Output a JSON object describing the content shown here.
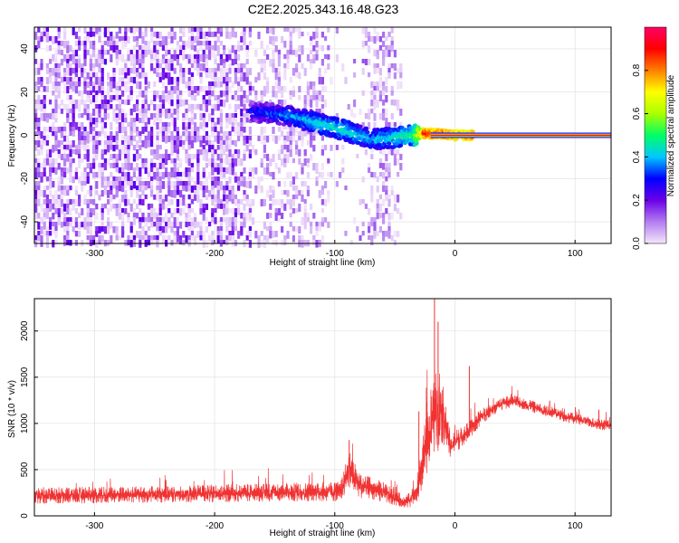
{
  "chart_data": [
    {
      "type": "heatmap",
      "title": "C2E2.2025.343.16.48.G23",
      "xlabel": "Height of straight line (km)",
      "ylabel": "Frequency (Hz)",
      "xlim": [
        -350,
        130
      ],
      "ylim": [
        -50,
        50
      ],
      "xticks": [
        -300,
        -200,
        -100,
        0,
        100
      ],
      "yticks": [
        -40,
        -20,
        0,
        20,
        40
      ],
      "colorbar": {
        "label": "Normalized spectral amplitude",
        "range": [
          0.0,
          1.0
        ],
        "ticks": [
          0.0,
          0.2,
          0.4,
          0.6,
          0.8
        ],
        "colors": [
          "#f4e6fb",
          "#b37df0",
          "#6a00e8",
          "#0000ff",
          "#00c8ff",
          "#00ff64",
          "#aaff00",
          "#ffff00",
          "#ff8000",
          "#ff0000",
          "#ff0066"
        ]
      },
      "features": {
        "noise_region_x": [
          -350,
          -45
        ],
        "sparse_bands_x": [
          [
            -160,
            -110
          ],
          [
            -75,
            -55
          ]
        ],
        "signal_track": [
          {
            "x": -170,
            "freq": 11,
            "amp": 0.3
          },
          {
            "x": -150,
            "freq": 10,
            "amp": 0.35
          },
          {
            "x": -130,
            "freq": 8,
            "amp": 0.4
          },
          {
            "x": -110,
            "freq": 5,
            "amp": 0.45
          },
          {
            "x": -90,
            "freq": 2,
            "amp": 0.45
          },
          {
            "x": -70,
            "freq": -2,
            "amp": 0.4
          },
          {
            "x": -50,
            "freq": -1,
            "amp": 0.45
          },
          {
            "x": -35,
            "freq": 0,
            "amp": 0.5
          },
          {
            "x": -25,
            "freq": 1,
            "amp": 0.9
          },
          {
            "x": -10,
            "freq": 0.5,
            "amp": 0.9
          },
          {
            "x": 0,
            "freq": 0,
            "amp": 0.85
          },
          {
            "x": 130,
            "freq": 0,
            "amp": 0.95
          }
        ]
      }
    },
    {
      "type": "line",
      "xlabel": "Height of straight line (km)",
      "ylabel": "SNR (10 * v/v)",
      "xlim": [
        -350,
        130
      ],
      "ylim": [
        0,
        2350
      ],
      "xticks": [
        -300,
        -200,
        -100,
        0,
        100
      ],
      "yticks": [
        0,
        500,
        1000,
        1500,
        2000
      ],
      "series": [
        {
          "name": "SNR",
          "color": "#f03232",
          "x": [
            -350,
            -320,
            -290,
            -260,
            -230,
            -200,
            -170,
            -140,
            -110,
            -95,
            -88,
            -80,
            -70,
            -60,
            -50,
            -40,
            -32,
            -25,
            -20,
            -15,
            -12,
            -8,
            -4,
            0,
            10,
            20,
            30,
            40,
            50,
            60,
            70,
            80,
            90,
            100,
            110,
            120,
            130
          ],
          "values": [
            220,
            225,
            225,
            230,
            235,
            240,
            250,
            255,
            260,
            265,
            520,
            330,
            300,
            260,
            190,
            150,
            250,
            700,
            950,
            1150,
            1200,
            1000,
            750,
            800,
            900,
            1050,
            1150,
            1220,
            1240,
            1200,
            1160,
            1120,
            1080,
            1050,
            1020,
            990,
            980
          ],
          "spread": [
            130,
            130,
            130,
            130,
            130,
            140,
            140,
            150,
            150,
            160,
            300,
            200,
            170,
            160,
            120,
            100,
            200,
            450,
            500,
            700,
            600,
            350,
            220,
            180,
            150,
            130,
            110,
            100,
            90,
            90,
            90,
            85,
            85,
            85,
            85,
            85,
            85
          ],
          "spikes": [
            {
              "x": -17,
              "value": 2350
            },
            {
              "x": -14,
              "value": 2100
            },
            {
              "x": -88,
              "value": 820
            },
            {
              "x": 12,
              "value": 1620
            },
            {
              "x": -30,
              "value": 1130
            }
          ]
        }
      ]
    }
  ]
}
